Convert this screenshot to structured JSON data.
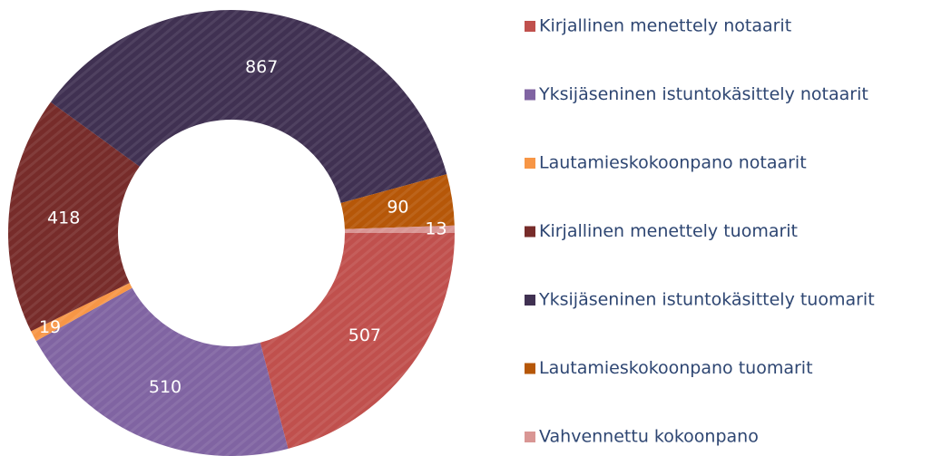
{
  "chart_data": {
    "type": "donut",
    "categories": [
      "Kirjallinen menettely notaarit",
      "Yksijäseninen istuntokäsittely notaarit",
      "Lautamieskokoonpano notaarit",
      "Kirjallinen menettely tuomarit",
      "Yksijäseninen istuntokäsittely tuomarit",
      "Lautamieskokoonpano tuomarit",
      "Vahvennettu kokoonpano"
    ],
    "values": [
      507,
      510,
      19,
      418,
      867,
      90,
      13
    ],
    "colors": [
      "#c0504d",
      "#8064a2",
      "#f79646",
      "#772c2a",
      "#403152",
      "#b65708",
      "#d99694"
    ],
    "legend": "right"
  }
}
